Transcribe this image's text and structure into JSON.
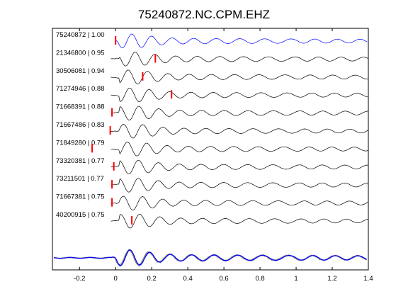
{
  "chart_data": {
    "type": "line",
    "title": "75240872.NC.CPM.EHZ",
    "xlabel": "",
    "ylabel": "",
    "xlim": [
      -0.35,
      1.4
    ],
    "xticks": [
      -0.2,
      0,
      0.2,
      0.4,
      0.6,
      0.8,
      1.0,
      1.2,
      1.4
    ],
    "xtick_labels": [
      "-0.2",
      "0",
      "0.2",
      "0.4",
      "0.6",
      "0.8",
      "1",
      "1.2",
      "1.4"
    ],
    "grid": false,
    "reference_color": "#0000ff",
    "trace_color": "#000000",
    "pick_color": "#ff0000",
    "stack_color": "#808080",
    "traces": [
      {
        "label": "75240872 | 1.00",
        "pick": 0.0,
        "reference": true
      },
      {
        "label": "21346800 | 0.95",
        "pick": 0.22,
        "reference": false
      },
      {
        "label": "30506081 | 0.94",
        "pick": 0.15,
        "reference": false
      },
      {
        "label": "71274946 | 0.88",
        "pick": 0.31,
        "reference": false
      },
      {
        "label": "71668391 | 0.88",
        "pick": -0.02,
        "reference": false
      },
      {
        "label": "71667486 | 0.83",
        "pick": -0.03,
        "reference": false
      },
      {
        "label": "71849280 | 0.79",
        "pick": -0.13,
        "reference": false
      },
      {
        "label": "73320381 | 0.77",
        "pick": -0.01,
        "reference": false
      },
      {
        "label": "73211501 | 0.77",
        "pick": -0.02,
        "reference": false
      },
      {
        "label": "71667381 | 0.75",
        "pick": -0.02,
        "reference": false
      },
      {
        "label": "40200915 | 0.75",
        "pick": 0.09,
        "reference": false
      }
    ]
  }
}
